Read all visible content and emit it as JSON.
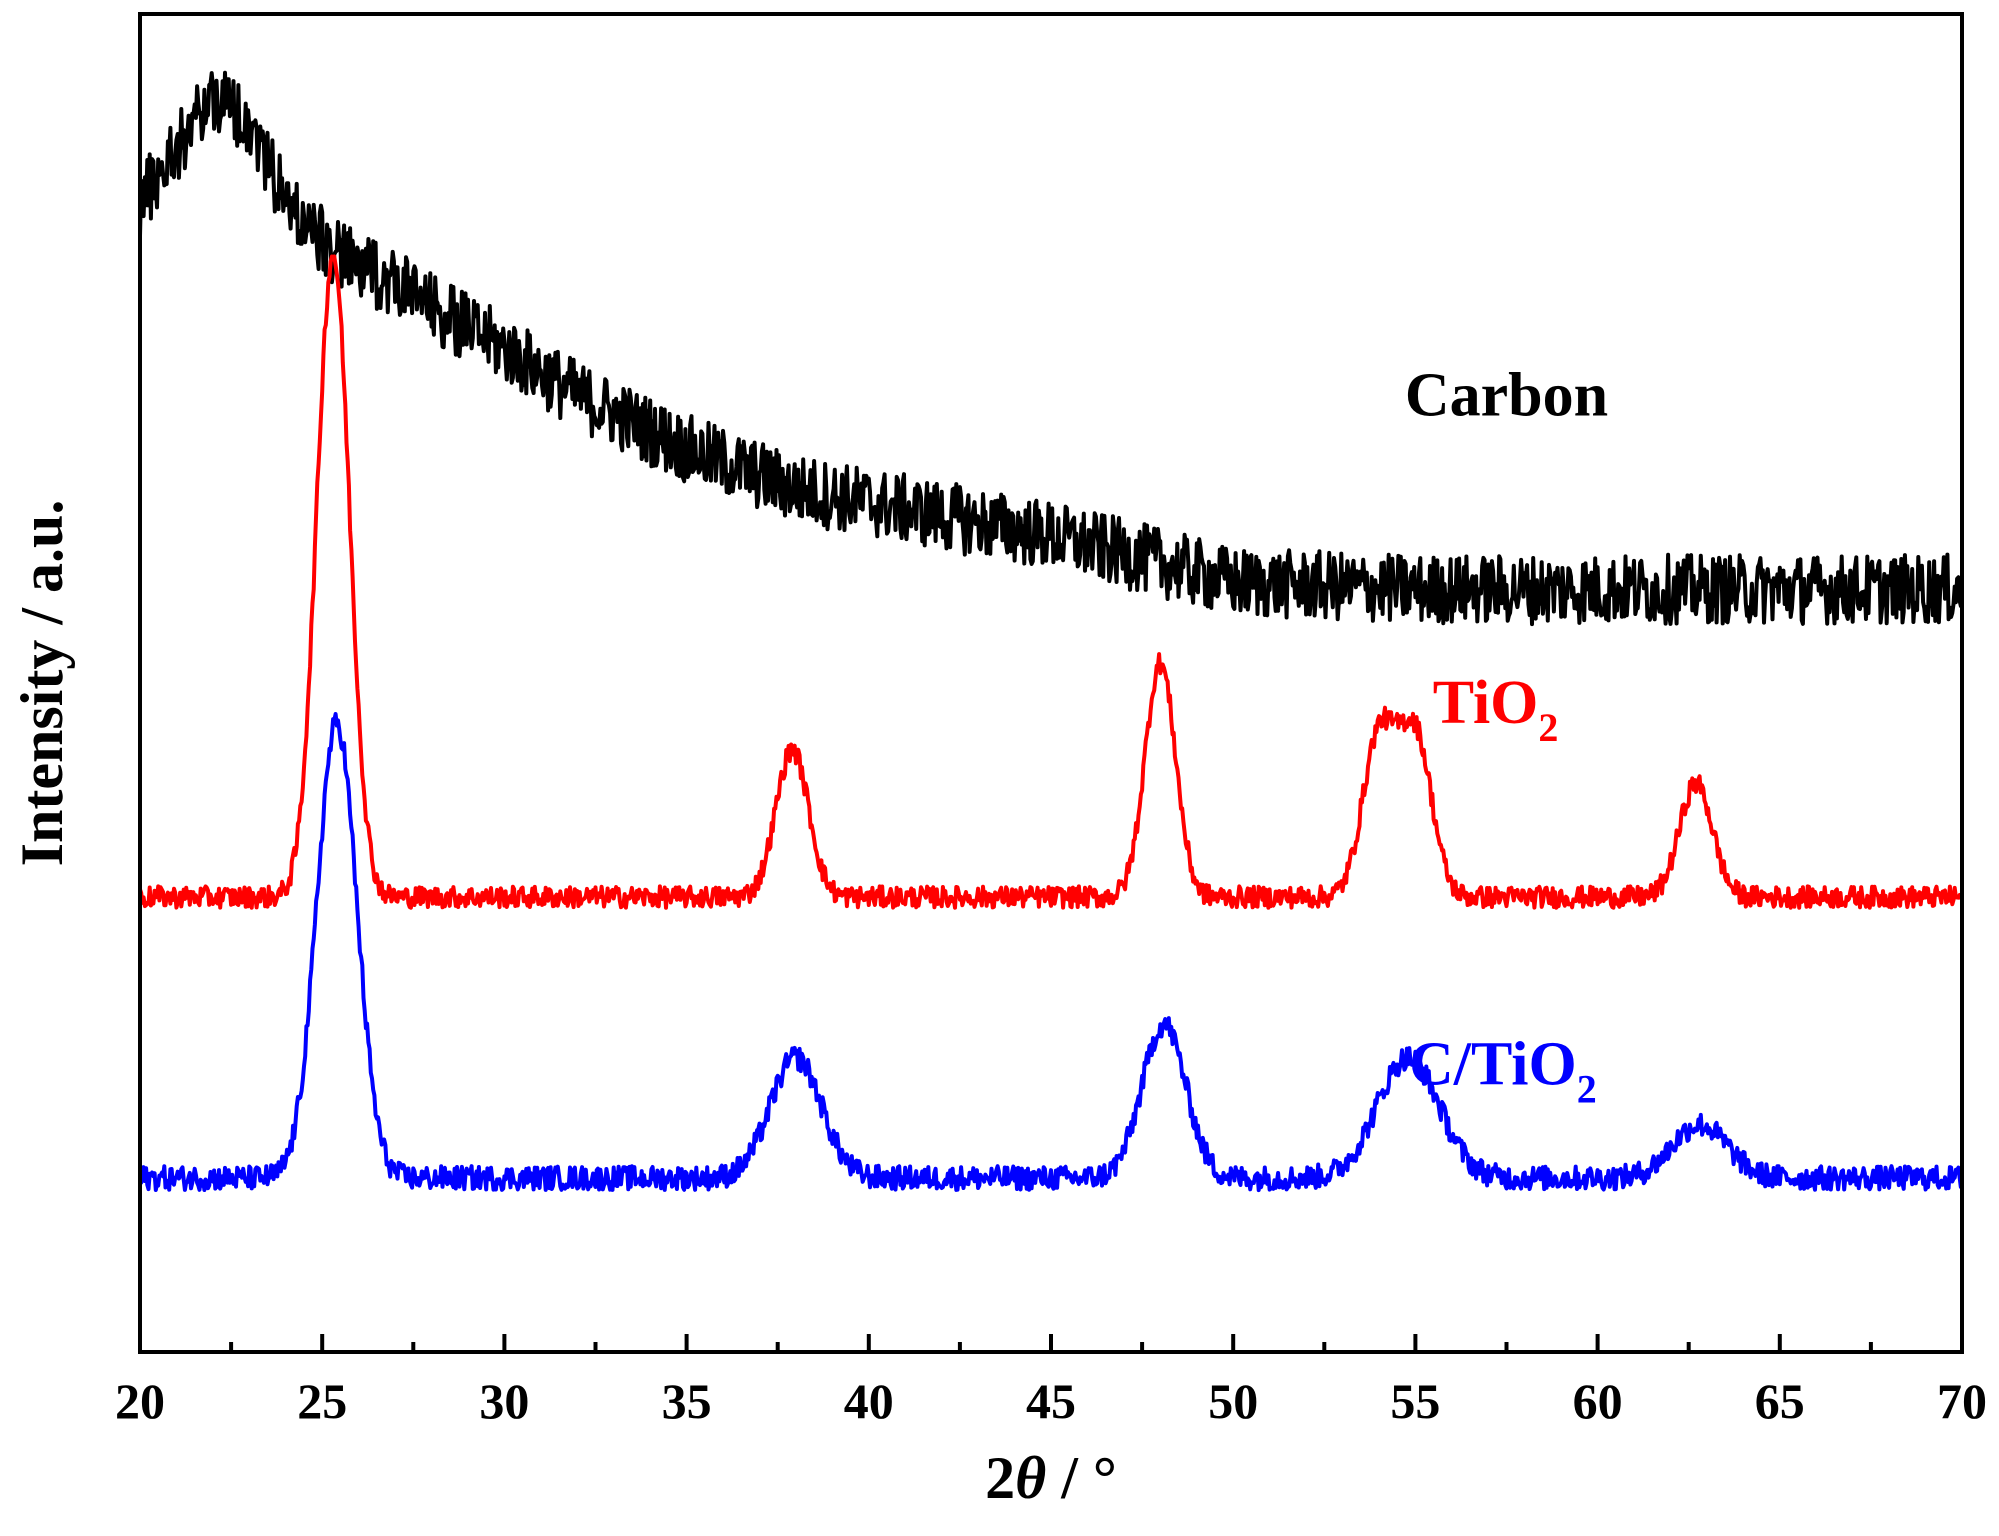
{
  "chart_data": {
    "type": "line",
    "title": "",
    "xlabel_prefix": "2",
    "xlabel_theta": "θ",
    "xlabel_suffix": " / °",
    "ylabel": "Intensity / a.u.",
    "xlim": [
      20,
      70
    ],
    "ylim": [
      0,
      100
    ],
    "x_ticks": [
      "20",
      "25",
      "30",
      "35",
      "40",
      "45",
      "50",
      "55",
      "60",
      "65",
      "70"
    ],
    "y_ticks_shown": false,
    "grid": false,
    "series": [
      {
        "name": "Carbon",
        "label_text": "Carbon",
        "label_sub": "",
        "color": "#000000",
        "baseline": 57,
        "noise": 2.6,
        "envelope": [
          [
            20,
            86
          ],
          [
            21,
            90
          ],
          [
            22,
            94
          ],
          [
            23,
            92
          ],
          [
            24,
            86
          ],
          [
            25,
            83
          ],
          [
            26,
            81
          ],
          [
            27,
            80
          ],
          [
            28,
            78
          ],
          [
            30,
            75
          ],
          [
            32,
            71.5
          ],
          [
            35,
            67.5
          ],
          [
            38,
            64.5
          ],
          [
            40,
            63.5
          ],
          [
            42,
            62.5
          ],
          [
            45,
            61
          ],
          [
            48,
            59
          ],
          [
            50,
            57.5
          ],
          [
            55,
            57
          ],
          [
            60,
            57
          ],
          [
            65,
            57
          ],
          [
            70,
            57
          ]
        ],
        "peaks": []
      },
      {
        "name": "TiO2",
        "label_text": "TiO",
        "label_sub": "2",
        "color": "#ff0000",
        "baseline": 34,
        "noise": 0.8,
        "envelope": [],
        "peaks": [
          {
            "x": 25.3,
            "height": 48,
            "width": 0.45
          },
          {
            "x": 37.9,
            "height": 11,
            "width": 0.45
          },
          {
            "x": 48.0,
            "height": 17.5,
            "width": 0.42
          },
          {
            "x": 54.0,
            "height": 12,
            "width": 0.45
          },
          {
            "x": 55.0,
            "height": 12,
            "width": 0.45
          },
          {
            "x": 62.7,
            "height": 8.5,
            "width": 0.45
          }
        ]
      },
      {
        "name": "C/TiO2",
        "label_text": "C/TiO",
        "label_sub": "2",
        "color": "#0000ff",
        "baseline": 13,
        "noise": 0.9,
        "envelope": [],
        "peaks": [
          {
            "x": 25.4,
            "height": 34,
            "width": 0.55
          },
          {
            "x": 38.0,
            "height": 9,
            "width": 0.7
          },
          {
            "x": 48.1,
            "height": 11.5,
            "width": 0.6
          },
          {
            "x": 54.8,
            "height": 9,
            "width": 0.85
          },
          {
            "x": 62.8,
            "height": 4,
            "width": 0.75
          }
        ]
      }
    ],
    "annotations": [
      {
        "series": "Carbon",
        "x": 57.5,
        "y": 70
      },
      {
        "series": "TiO2",
        "x": 57.2,
        "y": 47
      },
      {
        "series": "C/TiO2",
        "x": 57.4,
        "y": 20
      }
    ]
  }
}
